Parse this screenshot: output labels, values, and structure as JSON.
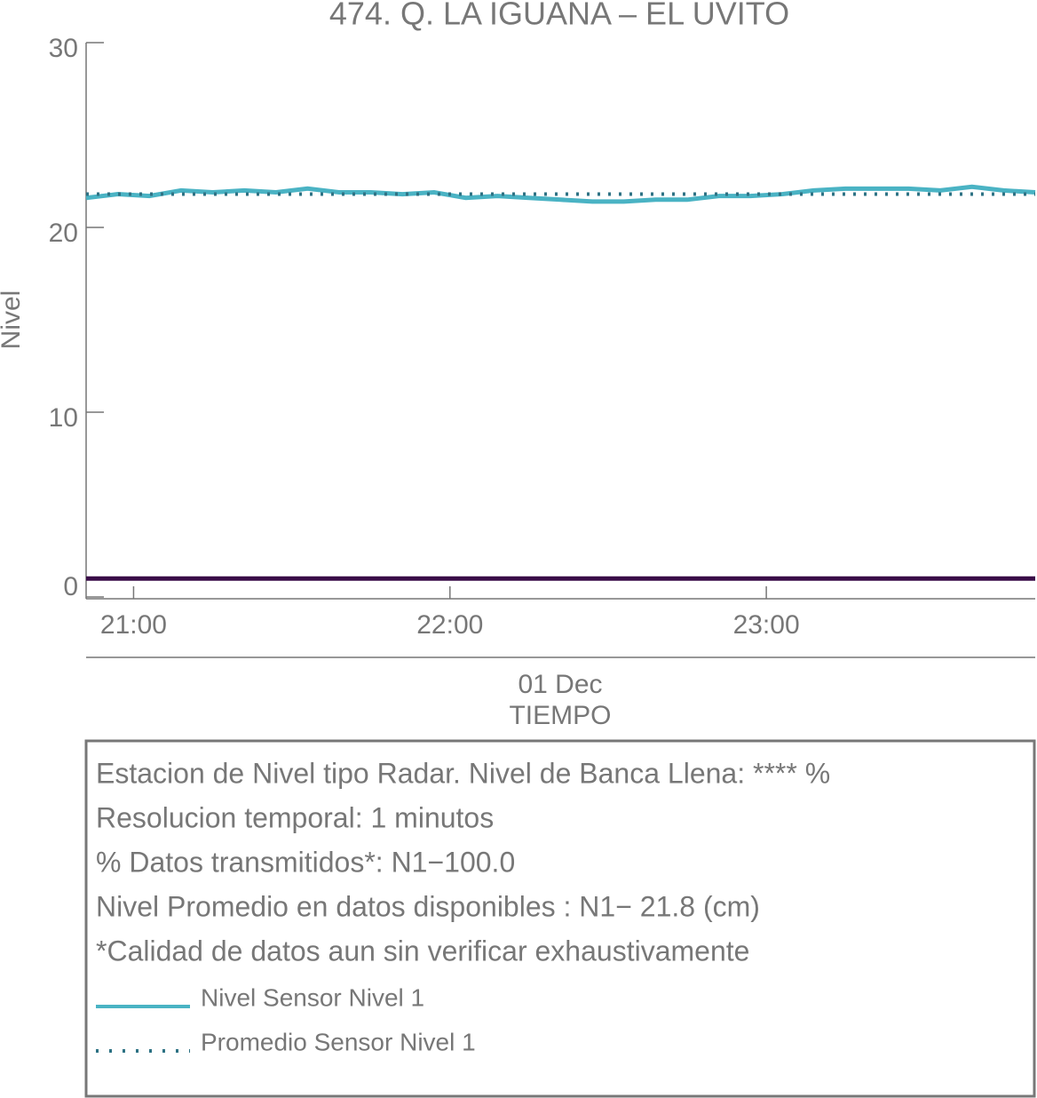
{
  "chart_data": {
    "type": "line",
    "title": "474. Q. LA IGUANA – EL UVITO",
    "y_label": "Nivel",
    "x_label": "TIEMPO",
    "date_label": "01 Dec",
    "x": [
      "20:51",
      "20:57",
      "21:03",
      "21:09",
      "21:15",
      "21:21",
      "21:27",
      "21:33",
      "21:39",
      "21:45",
      "21:51",
      "21:57",
      "22:03",
      "22:09",
      "22:15",
      "22:21",
      "22:27",
      "22:33",
      "22:39",
      "22:45",
      "22:51",
      "22:57",
      "23:03",
      "23:09",
      "23:15",
      "23:21",
      "23:27",
      "23:33",
      "23:39",
      "23:45",
      "23:51"
    ],
    "xlim": [
      "20:51",
      "23:51"
    ],
    "xticks": [
      "21:00",
      "22:00",
      "23:00"
    ],
    "ylim": [
      0,
      30
    ],
    "yticks": [
      0,
      10,
      20,
      30
    ],
    "series": [
      {
        "name": "Nivel Sensor Nivel 1",
        "color": "#4ab3c4",
        "style": "solid",
        "values": [
          21.6,
          21.8,
          21.7,
          22.0,
          21.9,
          22.0,
          21.9,
          22.1,
          21.9,
          21.9,
          21.8,
          21.9,
          21.6,
          21.7,
          21.6,
          21.5,
          21.4,
          21.4,
          21.5,
          21.5,
          21.7,
          21.7,
          21.8,
          22.0,
          22.1,
          22.1,
          22.1,
          22.0,
          22.2,
          22.0,
          21.9
        ]
      },
      {
        "name": "Promedio Sensor Nivel 1",
        "color": "#2e7284",
        "style": "dotted",
        "values": [
          21.8,
          21.8,
          21.8,
          21.8,
          21.8,
          21.8,
          21.8,
          21.8,
          21.8,
          21.8,
          21.8,
          21.8,
          21.8,
          21.8,
          21.8,
          21.8,
          21.8,
          21.8,
          21.8,
          21.8,
          21.8,
          21.8,
          21.8,
          21.8,
          21.8,
          21.8,
          21.8,
          21.8,
          21.8,
          21.8,
          21.8
        ]
      }
    ],
    "reference_line": {
      "value": 1,
      "color": "#3a0d48"
    },
    "notes": [
      "Estacion de Nivel tipo Radar. Nivel de Banca Llena: **** %",
      "Resolucion temporal: 1 minutos",
      "% Datos transmitidos*: N1−100.0",
      "Nivel Promedio en datos disponibles : N1− 21.8 (cm)",
      "*Calidad de datos aun sin verificar exhaustivamente"
    ]
  }
}
